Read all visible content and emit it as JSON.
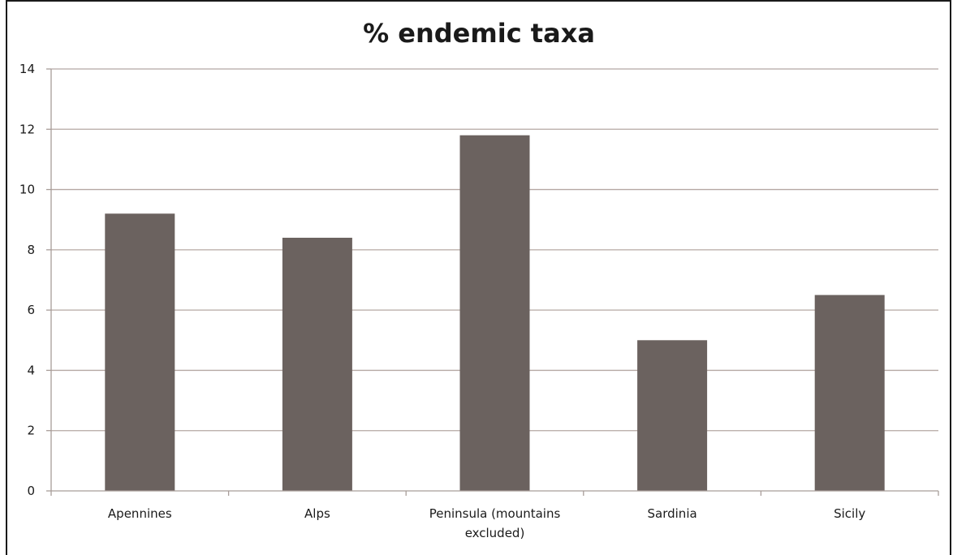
{
  "chart_data": {
    "type": "bar",
    "title": "% endemic taxa",
    "categories": [
      "Apennines",
      "Alps",
      "Peninsula (mountains excluded)",
      "Sardinia",
      "Sicily"
    ],
    "category_lines": [
      [
        "Apennines"
      ],
      [
        "Alps"
      ],
      [
        "Peninsula (mountains",
        "excluded)"
      ],
      [
        "Sardinia"
      ],
      [
        "Sicily"
      ]
    ],
    "values": [
      9.2,
      8.4,
      11.8,
      5.0,
      6.5
    ],
    "xlabel": "",
    "ylabel": "",
    "ylim": [
      0,
      14
    ],
    "yticks": [
      0,
      2,
      4,
      6,
      8,
      10,
      12,
      14
    ],
    "grid": true,
    "legend": "none",
    "colors": {
      "bar": "#6b625f",
      "grid": "#b5a8a3",
      "axis": "#a89d99",
      "text": "#1a1a1a"
    }
  }
}
